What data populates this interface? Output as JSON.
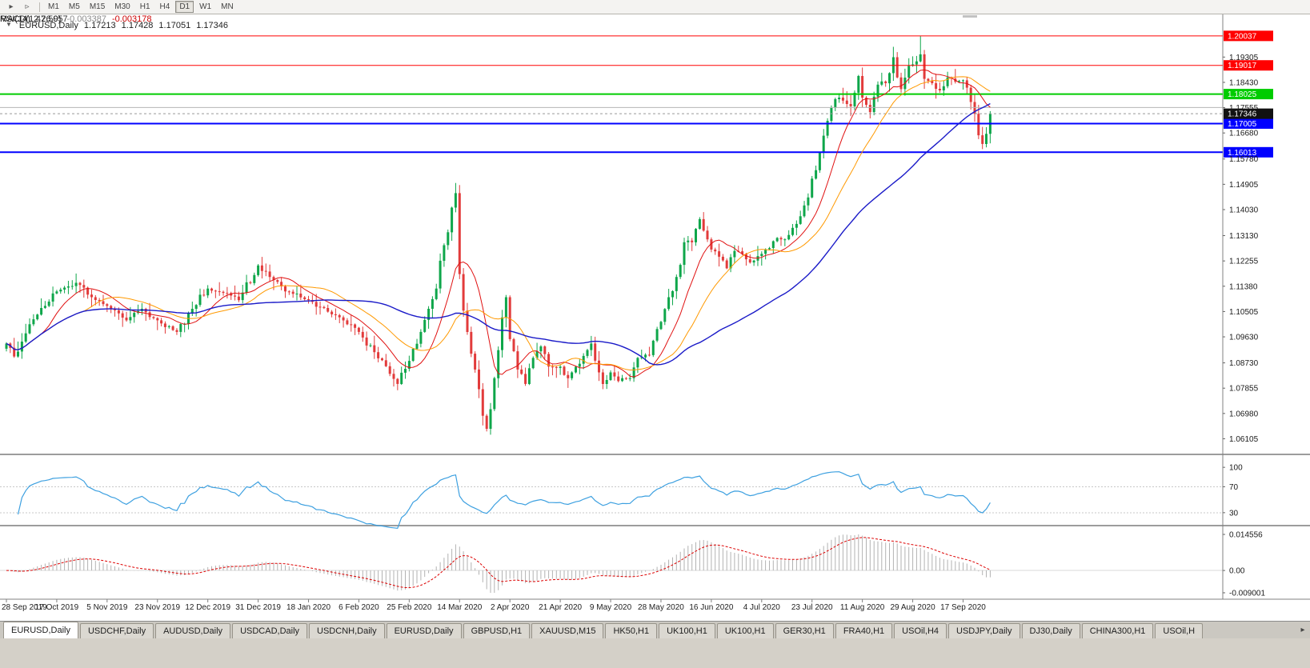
{
  "toolbar": {
    "icons": [
      {
        "name": "auto-scroll-icon",
        "glyph": "▸"
      },
      {
        "name": "chart-shift-icon",
        "glyph": "▹"
      }
    ],
    "timeframes": [
      "M1",
      "M5",
      "M15",
      "M30",
      "H1",
      "H4",
      "D1",
      "W1",
      "MN"
    ],
    "active_timeframe": "D1"
  },
  "chart": {
    "title": {
      "collapse_icon": "▼",
      "symbol": "EURUSD,Daily",
      "open": "1.17213",
      "high": "1.17428",
      "low": "1.17051",
      "close": "1.17346"
    },
    "current_price": 1.17346,
    "price_axis_ticks": [
      1.19305,
      1.1843,
      1.17555,
      1.1668,
      1.1578,
      1.14905,
      1.1403,
      1.1313,
      1.12255,
      1.1138,
      1.10505,
      1.0963,
      1.0873,
      1.07855,
      1.0698,
      1.06105
    ],
    "levels": [
      {
        "value": 1.20037,
        "color": "#ff0000",
        "width": 1,
        "labeled": true
      },
      {
        "value": 1.19017,
        "color": "#ff0000",
        "width": 1,
        "labeled": true
      },
      {
        "value": 1.18025,
        "color": "#00cc00",
        "width": 2,
        "labeled": true
      },
      {
        "value": 1.1756,
        "color": "#b4b4b4",
        "width": 1,
        "labeled": false
      },
      {
        "value": 1.17005,
        "color": "#0000ff",
        "width": 2,
        "labeled": true
      },
      {
        "value": 1.16013,
        "color": "#0000ff",
        "width": 2,
        "labeled": true
      }
    ]
  },
  "chart_data": {
    "type": "candlestick",
    "symbol": "EURUSD",
    "timeframe": "Daily",
    "bars": 255,
    "price_range": [
      1.0562,
      1.2078
    ],
    "up_color": "#0ea64a",
    "down_color": "#e23b3b",
    "price_keypoints": [
      [
        0,
        1.094
      ],
      [
        2,
        1.0895
      ],
      [
        5,
        1.0975
      ],
      [
        8,
        1.104
      ],
      [
        13,
        1.112
      ],
      [
        18,
        1.115
      ],
      [
        22,
        1.11
      ],
      [
        26,
        1.107
      ],
      [
        31,
        1.102
      ],
      [
        35,
        1.106
      ],
      [
        39,
        1.102
      ],
      [
        44,
        1.098
      ],
      [
        48,
        1.106
      ],
      [
        52,
        1.113
      ],
      [
        56,
        1.1115
      ],
      [
        60,
        1.109
      ],
      [
        65,
        1.121
      ],
      [
        68,
        1.117
      ],
      [
        72,
        1.112
      ],
      [
        78,
        1.109
      ],
      [
        83,
        1.105
      ],
      [
        87,
        1.102
      ],
      [
        91,
        1.098
      ],
      [
        95,
        1.091
      ],
      [
        99,
        1.0835
      ],
      [
        101,
        1.08
      ],
      [
        104,
        1.088
      ],
      [
        107,
        1.098
      ],
      [
        109,
        1.106
      ],
      [
        111,
        1.113
      ],
      [
        113,
        1.128
      ],
      [
        115,
        1.141
      ],
      [
        116,
        1.146
      ],
      [
        117,
        1.118
      ],
      [
        119,
        1.098
      ],
      [
        121,
        1.085
      ],
      [
        123,
        1.069
      ],
      [
        124,
        1.0645
      ],
      [
        126,
        1.082
      ],
      [
        128,
        1.103
      ],
      [
        129,
        1.11
      ],
      [
        130,
        1.0955
      ],
      [
        132,
        1.085
      ],
      [
        134,
        1.08
      ],
      [
        136,
        1.089
      ],
      [
        138,
        1.093
      ],
      [
        140,
        1.086
      ],
      [
        143,
        1.086
      ],
      [
        145,
        1.082
      ],
      [
        148,
        1.087
      ],
      [
        151,
        1.094
      ],
      [
        153,
        1.084
      ],
      [
        154,
        1.08
      ],
      [
        156,
        1.084
      ],
      [
        158,
        1.081
      ],
      [
        161,
        1.082
      ],
      [
        163,
        1.089
      ],
      [
        166,
        1.09
      ],
      [
        169,
        1.1015
      ],
      [
        171,
        1.11
      ],
      [
        173,
        1.117
      ],
      [
        175,
        1.129
      ],
      [
        177,
        1.129
      ],
      [
        179,
        1.137
      ],
      [
        181,
        1.13
      ],
      [
        182,
        1.1265
      ],
      [
        184,
        1.124
      ],
      [
        186,
        1.12
      ],
      [
        188,
        1.126
      ],
      [
        190,
        1.125
      ],
      [
        192,
        1.122
      ],
      [
        195,
        1.125
      ],
      [
        197,
        1.127
      ],
      [
        199,
        1.1305
      ],
      [
        201,
        1.13
      ],
      [
        203,
        1.134
      ],
      [
        205,
        1.138
      ],
      [
        207,
        1.1445
      ],
      [
        208,
        1.151
      ],
      [
        210,
        1.16
      ],
      [
        212,
        1.171
      ],
      [
        214,
        1.1785
      ],
      [
        216,
        1.178
      ],
      [
        218,
        1.176
      ],
      [
        220,
        1.1865
      ],
      [
        221,
        1.179
      ],
      [
        223,
        1.174
      ],
      [
        225,
        1.1835
      ],
      [
        227,
        1.184
      ],
      [
        229,
        1.193
      ],
      [
        231,
        1.182
      ],
      [
        233,
        1.19
      ],
      [
        234,
        1.1905
      ],
      [
        236,
        1.194
      ],
      [
        237,
        1.1855
      ],
      [
        239,
        1.184
      ],
      [
        241,
        1.1815
      ],
      [
        243,
        1.186
      ],
      [
        245,
        1.1845
      ],
      [
        247,
        1.185
      ],
      [
        249,
        1.1775
      ],
      [
        251,
        1.166
      ],
      [
        252,
        1.163
      ],
      [
        253,
        1.1665
      ],
      [
        254,
        1.17346
      ]
    ],
    "wick_high_overrides": [
      [
        116,
        1.1495
      ],
      [
        229,
        1.1966
      ],
      [
        236,
        1.2003
      ]
    ],
    "wick_low_overrides": [
      [
        124,
        1.0636
      ],
      [
        252,
        1.1612
      ]
    ],
    "moving_averages": [
      {
        "period": 10,
        "color": "#e01010",
        "width": 1
      },
      {
        "period": 21,
        "color": "#ff9900",
        "width": 1
      },
      {
        "period": 50,
        "color": "#1a1ac8",
        "width": 1.4
      }
    ],
    "date_labels": [
      "28 Sep 2019",
      "17 Oct 2019",
      "5 Nov 2019",
      "23 Nov 2019",
      "12 Dec 2019",
      "31 Dec 2019",
      "18 Jan 2020",
      "6 Feb 2020",
      "25 Feb 2020",
      "14 Mar 2020",
      "2 Apr 2020",
      "21 Apr 2020",
      "9 May 2020",
      "28 May 2020",
      "16 Jun 2020",
      "4 Jul 2020",
      "23 Jul 2020",
      "11 Aug 2020",
      "29 Aug 2020",
      "17 Sep 2020"
    ],
    "date_label_indices": [
      0,
      13,
      26,
      39,
      52,
      65,
      78,
      91,
      104,
      117,
      130,
      143,
      156,
      169,
      182,
      195,
      208,
      221,
      234,
      247
    ]
  },
  "rsi": {
    "name": "RSI(14)",
    "value": "47.5057",
    "period": 14,
    "ticks": [
      100,
      70,
      30
    ],
    "level_values": [
      70,
      30
    ],
    "line_color": "#3da0e0"
  },
  "macd": {
    "name": "MACD(12,26,9)",
    "main_value": "-0.003387",
    "signal_value": "-0.003178",
    "fast": 12,
    "slow": 26,
    "signal_period": 9,
    "tick_max": "0.014556",
    "tick_zero": "0.00",
    "tick_min": "-0.009001",
    "hist_color": "#b2b2b2",
    "signal_color": "#dd0000"
  },
  "tabs": {
    "items": [
      "EURUSD,Daily",
      "USDCHF,Daily",
      "AUDUSD,Daily",
      "USDCAD,Daily",
      "USDCNH,Daily",
      "EURUSD,Daily",
      "GBPUSD,H1",
      "XAUUSD,M15",
      "HK50,H1",
      "UK100,H1",
      "UK100,H1",
      "GER30,H1",
      "FRA40,H1",
      "USOil,H4",
      "USDJPY,Daily",
      "DJ30,Daily",
      "CHINA300,H1",
      "USOil,H"
    ],
    "active_index": 0,
    "scroll_icon": "▸"
  }
}
